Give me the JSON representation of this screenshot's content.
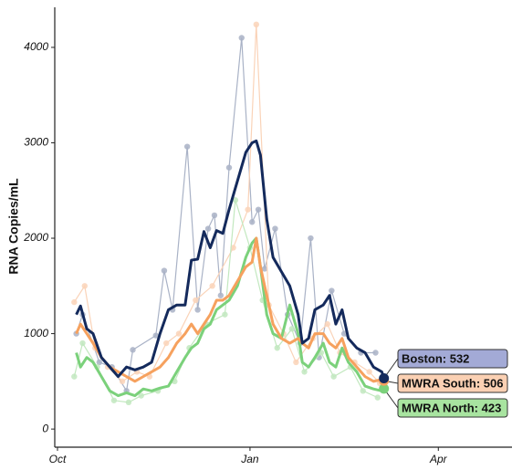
{
  "chart_data": {
    "type": "line",
    "y_label": "RNA Copies/mL",
    "xlim": [
      -1.3,
      217.2
    ],
    "ylim": [
      -190,
      4420
    ],
    "xticks": [
      {
        "value": 0,
        "label": "Oct"
      },
      {
        "value": 92,
        "label": "Jan"
      },
      {
        "value": 182,
        "label": "Apr"
      }
    ],
    "yticks": [
      0,
      1000,
      2000,
      3000,
      4000
    ],
    "x": [
      9,
      11,
      14,
      17,
      21,
      25,
      29,
      33,
      37,
      41,
      45,
      49,
      53,
      57,
      61,
      64,
      67,
      70,
      73,
      76,
      79,
      82,
      86,
      90,
      93,
      95,
      97,
      100,
      103,
      107,
      111,
      115,
      117,
      120,
      123,
      127,
      130,
      133,
      136,
      139,
      143,
      147,
      151,
      155,
      156
    ],
    "series": [
      {
        "name": "MWRA North",
        "color": "#7bd17b",
        "label_color": "#a8e4a0",
        "end_label": "MWRA North: 423",
        "values": [
          800,
          650,
          750,
          700,
          550,
          400,
          350,
          380,
          350,
          420,
          400,
          430,
          450,
          600,
          750,
          850,
          900,
          1050,
          1100,
          1250,
          1300,
          1350,
          1500,
          1800,
          1950,
          2000,
          1700,
          1200,
          1000,
          950,
          1300,
          1000,
          700,
          650,
          750,
          900,
          700,
          650,
          850,
          700,
          600,
          450,
          420,
          400,
          423
        ]
      },
      {
        "name": "MWRA South",
        "color": "#f6a15e",
        "label_color": "#fad0b3",
        "end_label": "MWRA South: 506",
        "values": [
          1000,
          1100,
          1000,
          900,
          750,
          650,
          600,
          550,
          500,
          550,
          600,
          650,
          750,
          900,
          1000,
          1100,
          1000,
          1100,
          1200,
          1350,
          1350,
          1400,
          1550,
          1700,
          1750,
          2000,
          1700,
          1400,
          1100,
          950,
          900,
          950,
          900,
          850,
          1000,
          1000,
          900,
          850,
          950,
          750,
          650,
          550,
          500,
          520,
          506
        ]
      },
      {
        "name": "Boston",
        "color": "#142a5c",
        "label_color": "#a3aad6",
        "end_label": "Boston: 532",
        "values": [
          1200,
          1290,
          1050,
          1000,
          750,
          650,
          550,
          650,
          620,
          650,
          700,
          1000,
          1250,
          1300,
          1300,
          1770,
          1780,
          2070,
          1900,
          2080,
          2050,
          2300,
          2600,
          2900,
          3000,
          3020,
          2870,
          2200,
          1800,
          1650,
          1500,
          1200,
          900,
          950,
          1250,
          1300,
          1400,
          1100,
          1250,
          950,
          850,
          800,
          650,
          600,
          532
        ]
      }
    ],
    "raw": [
      {
        "color": "#a9b2c6",
        "x": [
          9,
          12,
          20,
          26,
          33,
          36,
          47,
          51,
          55,
          62,
          67,
          72,
          75,
          78,
          82,
          88,
          93,
          96,
          99,
          104,
          110,
          116,
          121,
          125,
          131,
          137,
          145,
          152
        ],
        "values": [
          1000,
          1200,
          700,
          650,
          400,
          830,
          980,
          1660,
          1250,
          2960,
          1250,
          2100,
          2240,
          1400,
          2740,
          4100,
          2170,
          2300,
          1680,
          2100,
          1200,
          900,
          2000,
          750,
          1450,
          1000,
          800,
          800
        ]
      },
      {
        "color": "#fad3b8",
        "x": [
          8,
          13,
          18,
          24,
          31,
          38,
          44,
          52,
          58,
          66,
          74,
          84,
          91,
          95,
          101,
          108,
          114,
          122,
          129,
          135,
          142,
          149,
          154
        ],
        "values": [
          1330,
          1500,
          850,
          650,
          500,
          600,
          550,
          900,
          1000,
          1350,
          1500,
          1900,
          2300,
          4240,
          1300,
          1000,
          700,
          950,
          1100,
          800,
          700,
          600,
          480
        ]
      },
      {
        "color": "#c2e8bf",
        "x": [
          8,
          12,
          19,
          27,
          34,
          40,
          48,
          56,
          63,
          71,
          80,
          85,
          92,
          98,
          105,
          112,
          118,
          126,
          132,
          140,
          146,
          153
        ],
        "values": [
          550,
          900,
          650,
          300,
          280,
          350,
          400,
          500,
          850,
          1100,
          1200,
          2400,
          1900,
          1350,
          850,
          1050,
          600,
          800,
          550,
          650,
          400,
          330
        ]
      }
    ]
  }
}
